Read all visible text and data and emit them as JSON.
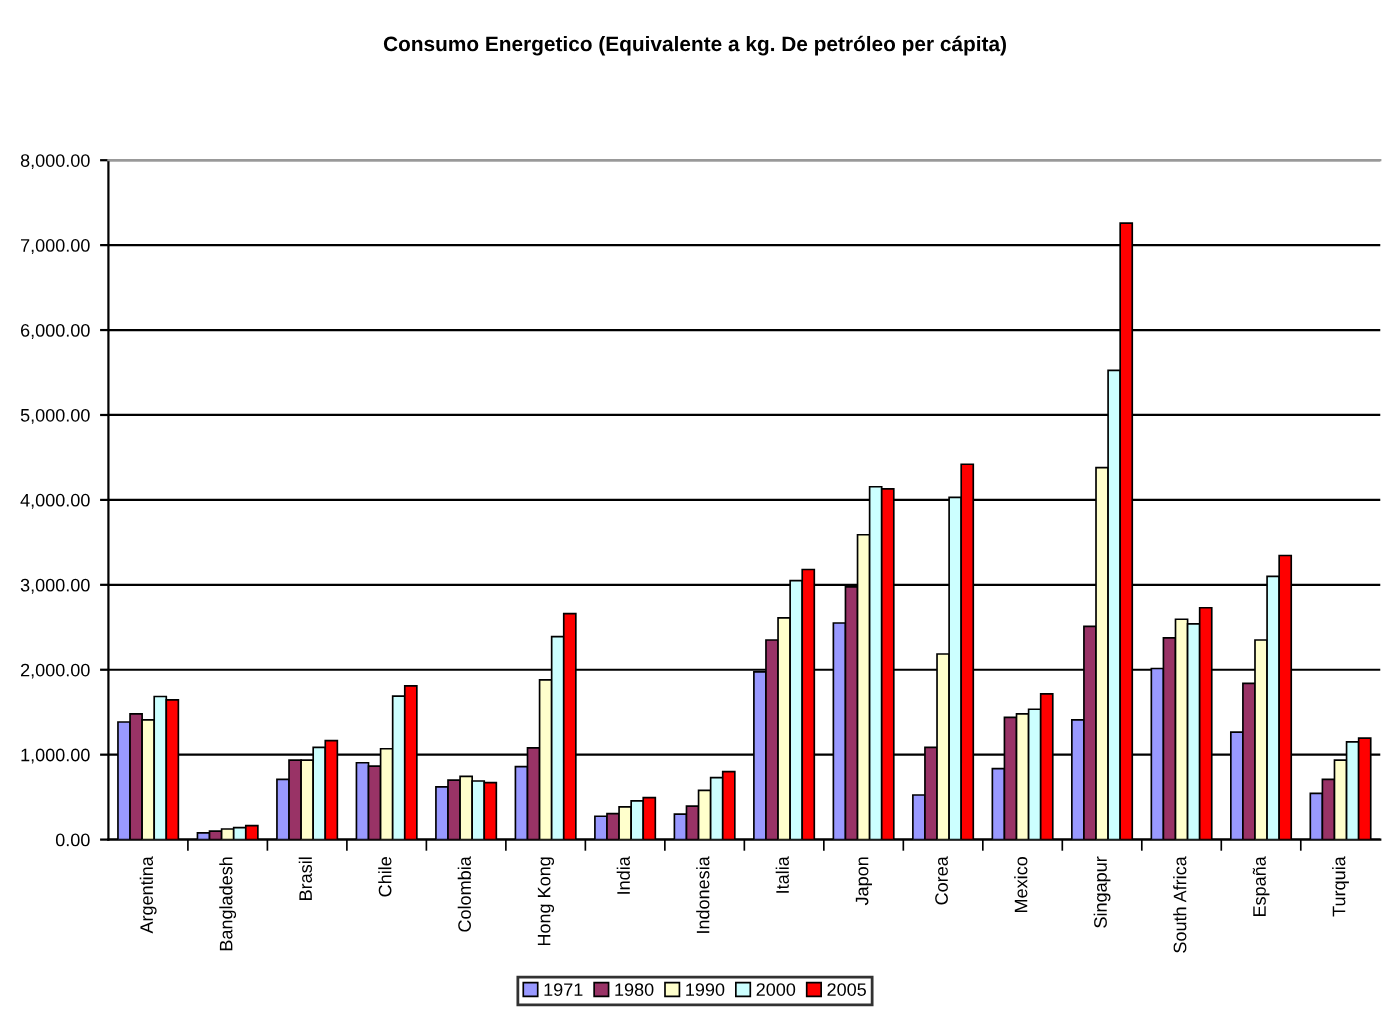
{
  "chart_data": {
    "type": "bar",
    "title": "Consumo Energetico (Equivalente a kg. De petróleo per cápita)",
    "categories": [
      "Argentina",
      "Bangladesh",
      "Brasil",
      "Chile",
      "Colombia",
      "Hong Kong",
      "India",
      "Indonesia",
      "Italia",
      "Japon",
      "Corea",
      "Mexico",
      "Singapur",
      "South Africa",
      "España",
      "Turquia"
    ],
    "series": [
      {
        "name": "1971",
        "color": "#9999ff",
        "values": [
          1385,
          80,
          710,
          905,
          620,
          860,
          275,
          300,
          1975,
          2550,
          525,
          835,
          1410,
          2015,
          1265,
          545
        ]
      },
      {
        "name": "1980",
        "color": "#993366",
        "values": [
          1480,
          100,
          935,
          865,
          700,
          1080,
          305,
          395,
          2350,
          2975,
          1085,
          1440,
          2510,
          2375,
          1840,
          710
        ]
      },
      {
        "name": "1990",
        "color": "#ffffcc",
        "values": [
          1410,
          125,
          935,
          1070,
          745,
          1880,
          385,
          580,
          2610,
          3590,
          2185,
          1480,
          4380,
          2595,
          2350,
          935
        ]
      },
      {
        "name": "2000",
        "color": "#ccffff",
        "values": [
          1685,
          140,
          1085,
          1690,
          690,
          2390,
          455,
          730,
          3050,
          4155,
          4030,
          1535,
          5525,
          2540,
          3100,
          1150
        ]
      },
      {
        "name": "2005",
        "color": "#ff0000",
        "values": [
          1645,
          165,
          1165,
          1810,
          670,
          2660,
          495,
          800,
          3180,
          4130,
          4420,
          1715,
          7260,
          2730,
          3345,
          1195
        ]
      }
    ],
    "ylim": [
      0,
      8000
    ],
    "yticks": [
      {
        "value": 0,
        "label": "0.00"
      },
      {
        "value": 1000,
        "label": "1,000.00"
      },
      {
        "value": 2000,
        "label": "2,000.00"
      },
      {
        "value": 3000,
        "label": "3,000.00"
      },
      {
        "value": 4000,
        "label": "4,000.00"
      },
      {
        "value": 5000,
        "label": "5,000.00"
      },
      {
        "value": 6000,
        "label": "6,000.00"
      },
      {
        "value": 7000,
        "label": "7,000.00"
      },
      {
        "value": 8000,
        "label": "8,000.00"
      }
    ],
    "grid": "y",
    "legend": "bottom"
  }
}
